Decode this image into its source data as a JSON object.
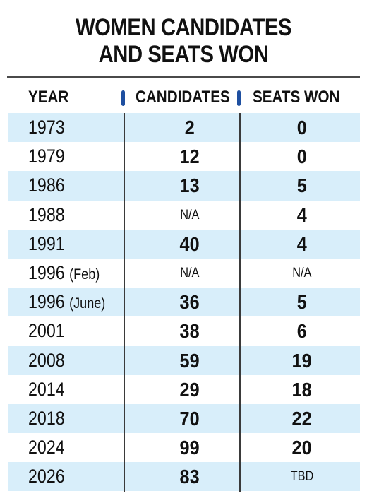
{
  "chart_data": {
    "type": "table",
    "title_lines": [
      "WOMEN CANDIDATES",
      "AND SEATS WON"
    ],
    "columns": [
      "YEAR",
      "CANDIDATES",
      "SEATS WON"
    ],
    "rows": [
      {
        "year": "1973",
        "qualifier": "",
        "candidates": "2",
        "seats": "0"
      },
      {
        "year": "1979",
        "qualifier": "",
        "candidates": "12",
        "seats": "0"
      },
      {
        "year": "1986",
        "qualifier": "",
        "candidates": "13",
        "seats": "5"
      },
      {
        "year": "1988",
        "qualifier": "",
        "candidates": "N/A",
        "seats": "4"
      },
      {
        "year": "1991",
        "qualifier": "",
        "candidates": "40",
        "seats": "4"
      },
      {
        "year": "1996",
        "qualifier": "(Feb)",
        "candidates": "N/A",
        "seats": "N/A"
      },
      {
        "year": "1996",
        "qualifier": "(June)",
        "candidates": "36",
        "seats": "5"
      },
      {
        "year": "2001",
        "qualifier": "",
        "candidates": "38",
        "seats": "6"
      },
      {
        "year": "2008",
        "qualifier": "",
        "candidates": "59",
        "seats": "19"
      },
      {
        "year": "2014",
        "qualifier": "",
        "candidates": "29",
        "seats": "18"
      },
      {
        "year": "2018",
        "qualifier": "",
        "candidates": "70",
        "seats": "22"
      },
      {
        "year": "2024",
        "qualifier": "",
        "candidates": "99",
        "seats": "20"
      },
      {
        "year": "2026",
        "qualifier": "",
        "candidates": "83",
        "seats": "TBD"
      }
    ]
  },
  "colors": {
    "row_shade": "#d8eefa",
    "header_marker": "#1e4fa0",
    "rule": "#4a4a4a"
  }
}
